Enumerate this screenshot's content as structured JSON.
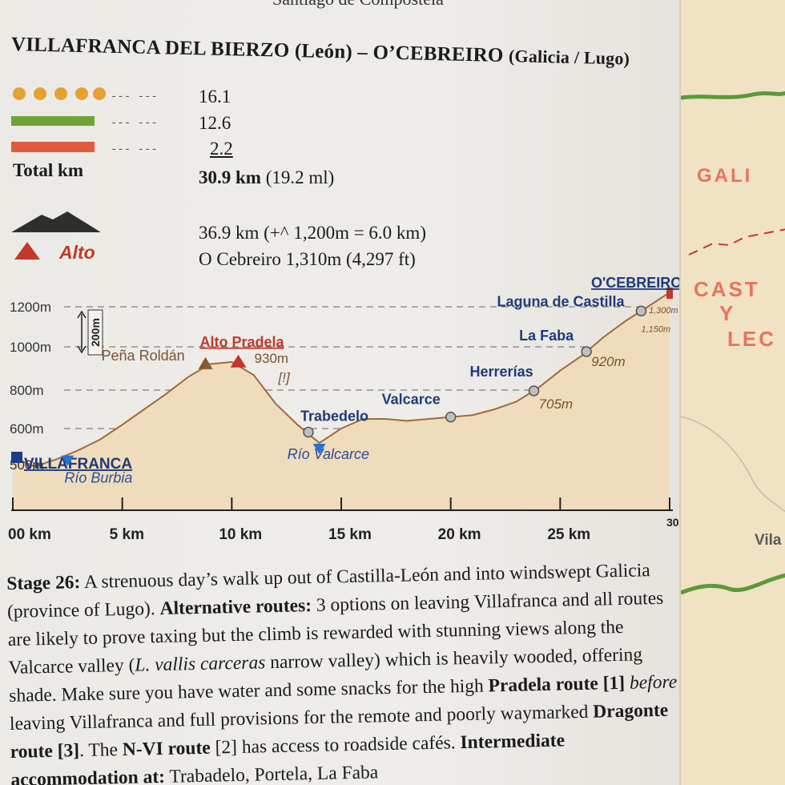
{
  "header": {
    "running_head": "Santiago de Compostela"
  },
  "title": {
    "main": "VILLAFRANCA DEL BIERZO (León) – O’CEBREIRO",
    "region": "(Galicia / Lugo)"
  },
  "legend": {
    "rows": [
      {
        "style": "dots",
        "color": "#e3a234",
        "dash": "--- ---",
        "km": "16.1"
      },
      {
        "style": "line",
        "color": "#6fa33a",
        "dash": "--- ---",
        "km": "12.6"
      },
      {
        "style": "line",
        "color": "#e05a3c",
        "dash": "--- ---",
        "km": "2.2"
      }
    ],
    "total_label": "Total km",
    "total_value": "30.9 km",
    "total_miles": "(19.2 ml)",
    "climb_line": "36.9 km (+^ 1,200m = 6.0 km)",
    "alto_label": "Alto",
    "alto_line": "O Cebreiro 1,310m (4,297 ft)"
  },
  "chart_data": {
    "type": "area",
    "x": [
      0,
      1,
      2,
      3,
      4,
      5,
      6,
      7,
      8,
      9,
      10,
      11,
      12,
      13,
      14,
      15,
      16,
      17,
      18,
      19,
      20,
      21,
      22,
      23,
      24,
      25,
      26,
      27,
      28,
      29,
      30
    ],
    "values": [
      520,
      495,
      515,
      540,
      570,
      620,
      700,
      780,
      860,
      920,
      930,
      870,
      730,
      620,
      560,
      600,
      650,
      650,
      640,
      650,
      660,
      670,
      700,
      740,
      810,
      890,
      960,
      1050,
      1130,
      1200,
      1300
    ],
    "unit": "m",
    "ylim": [
      450,
      1300
    ],
    "y_ticks": [
      "500m",
      "600m",
      "800m",
      "1000m",
      "1200m"
    ],
    "x_ticks": [
      "00 km",
      "5 km",
      "10 km",
      "15 km",
      "20 km",
      "25 km",
      "30"
    ],
    "scale_bar": "200m",
    "points": [
      {
        "name": "VILLAFRANCA",
        "km": 0,
        "type": "start"
      },
      {
        "name": "Río Burbia",
        "km": 2.5,
        "type": "valley"
      },
      {
        "name": "Peña Roldán",
        "km": 8.8,
        "type": "peak"
      },
      {
        "name": "Alto Pradela",
        "km": 10.3,
        "type": "alto",
        "elev": "930m",
        "note": "[!]"
      },
      {
        "name": "Trabedelo",
        "km": 13.5,
        "type": "village"
      },
      {
        "name": "Río Valcarce",
        "km": 14.0,
        "type": "valley"
      },
      {
        "name": "Valcarce",
        "km": 20.0,
        "type": "village"
      },
      {
        "name": "Herrerías",
        "km": 23.8,
        "type": "village",
        "elev": "705m"
      },
      {
        "name": "La Faba",
        "km": 26.2,
        "type": "village",
        "elev": "920m"
      },
      {
        "name": "Laguna de Castilla",
        "km": 28.7,
        "type": "village",
        "elev": "1,150m"
      },
      {
        "name": "O'CEBREIRO",
        "km": 30,
        "type": "end",
        "elev": "1,300m"
      }
    ],
    "grid": true
  },
  "description": {
    "stage": "Stage 26:",
    "s1": " A strenuous day’s walk up out of Castilla-León and into windswept Galicia (province of Lugo). ",
    "alt": "Alternative routes:",
    "s2": " 3 options on leaving Villafranca and all routes are likely to prove taxing but the climb is rewarded with stunning views along the Valcarce valley (",
    "latin": "L. vallis carceras",
    "s3": " narrow valley) which is heavily wooded, offering shade. Make sure you have water and some snacks for the high ",
    "pradela": "Pradela route [1]",
    "s4": " ",
    "before": "before",
    "s5": " leaving Villafranca and full provisions for the remote and poorly waymarked ",
    "dragonte": "Dragonte route [3]",
    "s6": ". The ",
    "nvi": "N-VI route",
    "s7": " [2] has access to roadside cafés. ",
    "inter": "Intermediate accommodation at:",
    "s8": " Trabadelo, Portela, La Faba"
  },
  "map": {
    "galicia": "GALI",
    "castilla": "CAST",
    "y": "Y",
    "leon": "LEC",
    "vila": "Vila"
  }
}
